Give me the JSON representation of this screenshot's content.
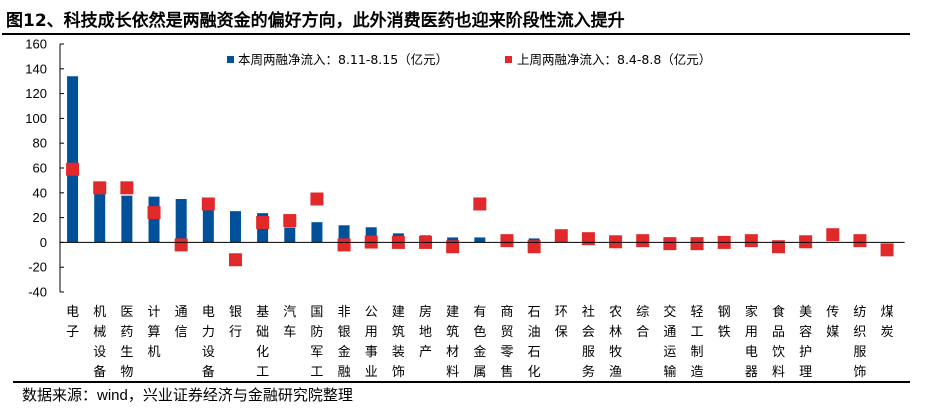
{
  "title": "图12、科技成长依然是两融资金的偏好方向，此外消费医药也迎来阶段性流入提升",
  "source": "数据来源：wind，兴业证券经济与金融研究院整理",
  "chart_data": {
    "type": "bar",
    "title": "",
    "xlabel": "",
    "ylabel": "",
    "ylim": [
      -40,
      160
    ],
    "yticks": [
      "160",
      "140",
      "120",
      "100",
      "80",
      "60",
      "40",
      "20",
      "0",
      "-20",
      "-40"
    ],
    "grid": false,
    "legend_position": "top-right",
    "categories": [
      "电子",
      "机械设备",
      "医药生物",
      "计算机",
      "通信",
      "电力设备",
      "银行",
      "基础化工",
      "汽车",
      "国防军工",
      "非银金融",
      "公用事业",
      "建筑装饰",
      "房地产",
      "建筑材料",
      "有色金属",
      "商贸零售",
      "石油石化",
      "环保",
      "社会服务",
      "农林牧渔",
      "综合",
      "交通运输",
      "轻工制造",
      "钢铁",
      "家用电器",
      "食品饮料",
      "美容护理",
      "传媒",
      "纺织服饰",
      "煤炭"
    ],
    "series": [
      {
        "name": "本周两融净流入：8.11-8.15（亿元）",
        "kind": "bar",
        "color": "#00509A",
        "values": [
          134,
          40,
          37.7,
          36.9,
          35,
          28,
          25.2,
          23.6,
          12,
          16.3,
          13.8,
          12.2,
          7.3,
          5.7,
          4,
          4,
          0,
          3.2,
          0,
          0,
          0,
          0,
          0,
          0,
          0,
          0,
          0,
          0,
          0,
          0,
          0
        ]
      },
      {
        "name": "上周两融净流入：8.4-8.8（亿元）",
        "kind": "marker",
        "color": "#E1292A",
        "values": [
          59,
          44,
          44,
          24,
          -2,
          31,
          -14,
          16,
          17.6,
          35,
          -2,
          0.3,
          0,
          0,
          -3.5,
          31,
          1.4,
          -3.5,
          5.4,
          3,
          0.5,
          1.4,
          -1,
          -1,
          0,
          1.4,
          -3.5,
          0.5,
          6.2,
          1.4,
          -6
        ]
      }
    ]
  }
}
